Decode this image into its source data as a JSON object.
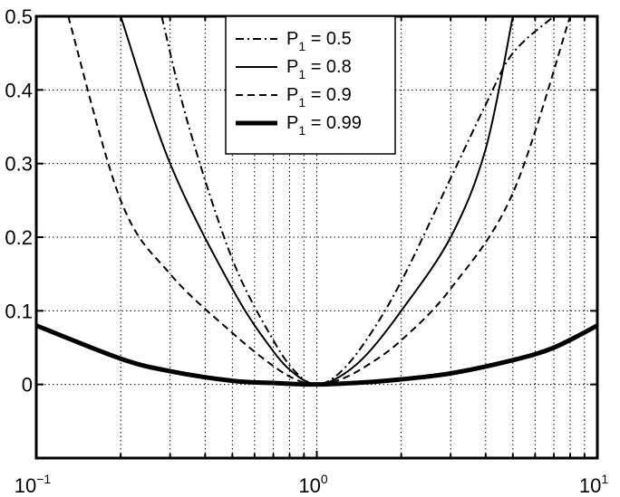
{
  "chart_data": {
    "type": "line",
    "x_scale": "log",
    "xlim": [
      0.1,
      10
    ],
    "ylim": [
      -0.1,
      0.5
    ],
    "grid": true,
    "legend_position": "top-center",
    "x_ticks": [
      {
        "value": 0.1,
        "base": "10",
        "exp": "−1"
      },
      {
        "value": 1,
        "base": "10",
        "exp": "0"
      },
      {
        "value": 10,
        "base": "10",
        "exp": "1"
      }
    ],
    "y_ticks": [
      {
        "value": 0,
        "label": "0"
      },
      {
        "value": 0.1,
        "label": "0.1"
      },
      {
        "value": 0.2,
        "label": "0.2"
      },
      {
        "value": 0.3,
        "label": "0.3"
      },
      {
        "value": 0.4,
        "label": "0.4"
      },
      {
        "value": 0.5,
        "label": "0.5"
      }
    ],
    "series": [
      {
        "name": "P1 = 0.5",
        "legend_prefix": "P",
        "legend_sub": "1",
        "legend_value": " = 0.5",
        "style": "dashdot",
        "color": "#000000",
        "x": [
          0.28,
          0.35,
          0.5,
          0.7,
          0.85,
          1.0,
          1.2,
          1.5,
          2.0,
          3.0,
          4.0,
          5.0,
          7.0
        ],
        "y": [
          0.5,
          0.35,
          0.17,
          0.06,
          0.015,
          0.0,
          0.015,
          0.06,
          0.14,
          0.28,
          0.38,
          0.45,
          0.5
        ]
      },
      {
        "name": "P1 = 0.8",
        "legend_prefix": "P",
        "legend_sub": "1",
        "legend_value": " = 0.8",
        "style": "solid",
        "color": "#000000",
        "x": [
          0.2,
          0.3,
          0.5,
          0.7,
          0.85,
          1.0,
          1.2,
          1.5,
          2.0,
          3.0,
          4.0,
          5.0
        ],
        "y": [
          0.5,
          0.3,
          0.13,
          0.045,
          0.012,
          0.0,
          0.01,
          0.04,
          0.1,
          0.2,
          0.32,
          0.5
        ]
      },
      {
        "name": "P1 = 0.9",
        "legend_prefix": "P",
        "legend_sub": "1",
        "legend_value": " = 0.9",
        "style": "dashed",
        "color": "#000000",
        "x": [
          0.13,
          0.2,
          0.3,
          0.5,
          0.7,
          0.85,
          1.0,
          1.2,
          1.5,
          2.0,
          3.0,
          5.0,
          8.0
        ],
        "y": [
          0.5,
          0.25,
          0.15,
          0.07,
          0.025,
          0.006,
          0.0,
          0.006,
          0.025,
          0.06,
          0.13,
          0.26,
          0.5
        ]
      },
      {
        "name": "P1 = 0.99",
        "legend_prefix": "P",
        "legend_sub": "1",
        "legend_value": " = 0.99",
        "style": "thick",
        "color": "#000000",
        "x": [
          0.1,
          0.2,
          0.3,
          0.5,
          0.7,
          1.0,
          1.5,
          2.0,
          3.0,
          5.0,
          7.0,
          10.0
        ],
        "y": [
          0.08,
          0.035,
          0.018,
          0.005,
          0.002,
          0.0,
          0.003,
          0.007,
          0.015,
          0.033,
          0.05,
          0.08
        ]
      }
    ]
  }
}
